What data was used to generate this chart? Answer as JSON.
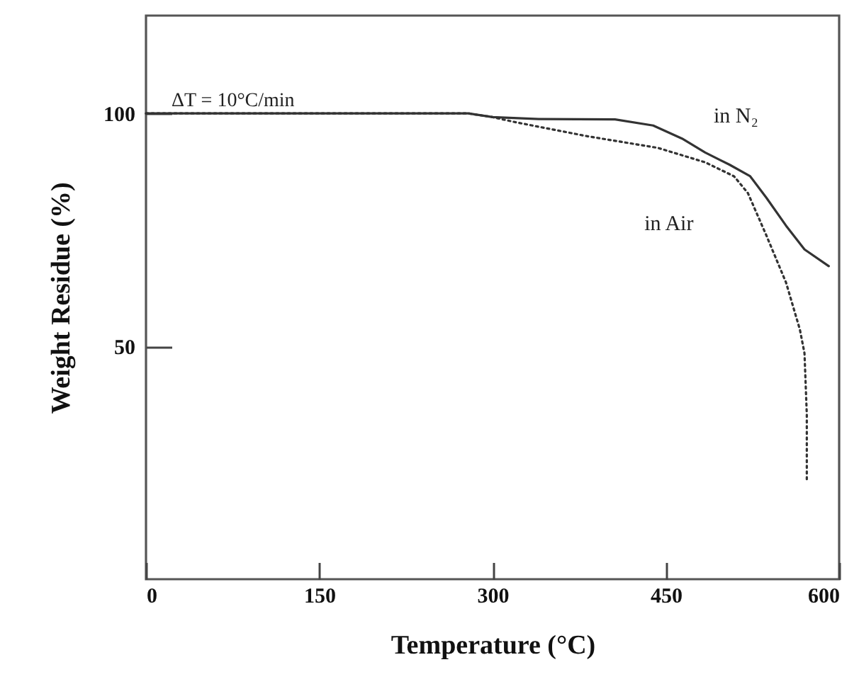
{
  "chart_data": {
    "type": "line",
    "xlabel": "Temperature (°C)",
    "ylabel": "Weight Residue (%)",
    "xlim": [
      0,
      600
    ],
    "xticks": [
      0,
      150,
      300,
      450,
      600
    ],
    "ylim": [
      0,
      121
    ],
    "yticks": [
      50,
      100
    ],
    "grid": false,
    "legend": false,
    "marker": "none",
    "annotations": [
      "ΔT = 10°C/min"
    ],
    "series": [
      {
        "name": "in N₂",
        "color": "#333333",
        "line_style": "solid",
        "x": [
          0,
          100,
          200,
          279,
          300,
          340,
          406,
          439,
          464,
          484,
          505,
          523,
          537,
          554,
          570,
          591
        ],
        "values": [
          100,
          100,
          100,
          100,
          99.2,
          98.8,
          98.7,
          97.4,
          94.6,
          91.6,
          89.0,
          86.5,
          81.9,
          75.9,
          70.8,
          67.2
        ]
      },
      {
        "name": "in Air",
        "color": "#333333",
        "line_style": "dotted",
        "x": [
          0,
          100,
          200,
          279,
          300,
          320,
          382,
          443,
          484,
          509,
          521,
          537,
          554,
          566,
          570,
          572,
          572
        ],
        "values": [
          100,
          100,
          100,
          100,
          99.2,
          98.1,
          95.1,
          92.6,
          89.5,
          86.5,
          82.9,
          73.8,
          63.7,
          53.6,
          48.5,
          35.3,
          21.1
        ]
      }
    ]
  }
}
